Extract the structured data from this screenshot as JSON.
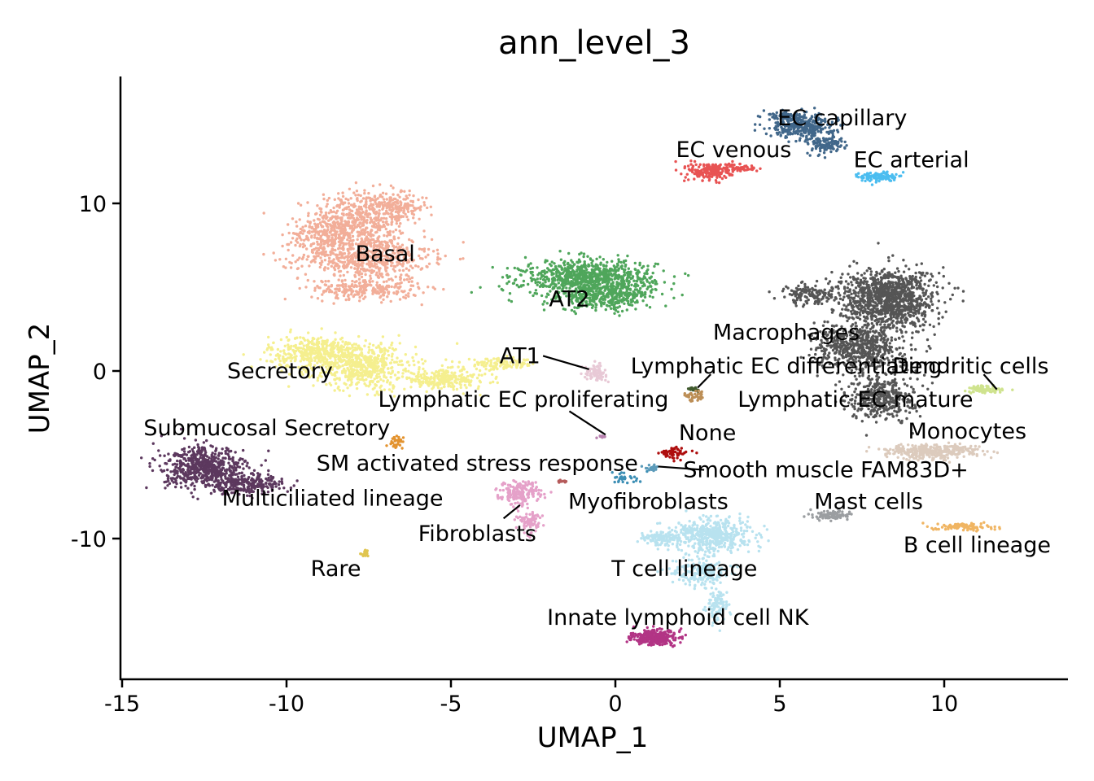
{
  "chart_data": {
    "type": "scatter",
    "title": "ann_level_3",
    "xlabel": "UMAP_1",
    "ylabel": "UMAP_2",
    "xlim": [
      -15.2,
      13.8
    ],
    "ylim": [
      -18.3,
      17.6
    ],
    "xticks": [
      -15,
      -10,
      -5,
      0,
      5,
      10
    ],
    "xtick_labels": [
      "-15",
      "-10",
      "-5",
      "0",
      "5",
      "10"
    ],
    "yticks": [
      -10,
      0,
      10
    ],
    "ytick_labels": [
      "-10",
      "0",
      "10"
    ],
    "grid": false,
    "legend": "none",
    "clusters": [
      {
        "name": "Basal",
        "color": "#F2AE99",
        "label": [
          -7,
          7
        ],
        "blobs": [
          [
            -7.8,
            9.0,
            1.3,
            1.6,
            500
          ],
          [
            -7.6,
            6.8,
            1.8,
            1.2,
            600
          ],
          [
            -8.8,
            8.2,
            0.9,
            1.0,
            200
          ],
          [
            -6.6,
            9.8,
            0.8,
            0.7,
            150
          ],
          [
            -7.6,
            4.9,
            1.5,
            0.6,
            250
          ]
        ]
      },
      {
        "name": "Secretory",
        "color": "#F5EF8F",
        "label": [
          -10.2,
          0
        ],
        "blobs": [
          [
            -9.0,
            1.1,
            1.4,
            0.9,
            450
          ],
          [
            -7.6,
            0.2,
            1.4,
            1.2,
            500
          ],
          [
            -5.2,
            -0.5,
            1.2,
            0.5,
            250
          ],
          [
            -3.5,
            0.4,
            1.0,
            0.3,
            120
          ]
        ]
      },
      {
        "name": "AT2",
        "color": "#4FA65B",
        "label": [
          -1.4,
          4.3
        ],
        "blobs": [
          [
            -0.8,
            5.5,
            1.8,
            1.0,
            900
          ],
          [
            -0.3,
            4.4,
            1.3,
            0.7,
            300
          ]
        ]
      },
      {
        "name": "AT1",
        "color": "#E8C9D6",
        "label": [
          -2.9,
          0.9
        ],
        "leader": [
          [
            -2.2,
            0.9
          ],
          [
            -0.8,
            0.1
          ]
        ],
        "blobs": [
          [
            -0.6,
            -0.1,
            0.3,
            0.4,
            80
          ]
        ]
      },
      {
        "name": "EC capillary",
        "color": "#41678A",
        "label": [
          6.9,
          15.1
        ],
        "blobs": [
          [
            5.7,
            14.6,
            0.9,
            0.6,
            300
          ],
          [
            6.4,
            13.5,
            0.5,
            0.5,
            120
          ],
          [
            5.2,
            15.2,
            0.5,
            0.3,
            80
          ]
        ]
      },
      {
        "name": "EC venous",
        "color": "#E85353",
        "label": [
          3.6,
          13.2
        ],
        "blobs": [
          [
            2.9,
            11.9,
            0.6,
            0.5,
            200
          ],
          [
            3.8,
            12.1,
            0.5,
            0.2,
            60
          ]
        ]
      },
      {
        "name": "EC arterial",
        "color": "#4BBDF0",
        "label": [
          9,
          12.6
        ],
        "blobs": [
          [
            8.0,
            11.6,
            0.5,
            0.25,
            120
          ]
        ]
      },
      {
        "name": "Macrophages",
        "color": "#555555",
        "label": [
          5.2,
          2.3
        ],
        "blobs": [
          [
            8.3,
            4.3,
            1.3,
            1.6,
            1100
          ],
          [
            7.4,
            1.4,
            1.2,
            1.2,
            600
          ],
          [
            8.1,
            -1.5,
            0.9,
            1.3,
            400
          ],
          [
            6.0,
            4.6,
            0.9,
            0.6,
            150
          ]
        ]
      },
      {
        "name": "Lymphatic EC differentiating",
        "color": "#405A2E",
        "label": [
          5.2,
          0.3
        ],
        "leader": [
          [
            2.9,
            -0.2
          ],
          [
            2.5,
            -1.0
          ]
        ],
        "blobs": [
          [
            2.4,
            -1.1,
            0.15,
            0.15,
            20
          ]
        ]
      },
      {
        "name": "Dendritic cells",
        "color": "#CFE38E",
        "label": [
          10.8,
          0.3
        ],
        "leader": [
          [
            11.2,
            -0.2
          ],
          [
            11.6,
            -1.1
          ]
        ],
        "blobs": [
          [
            11.2,
            -1.1,
            0.6,
            0.2,
            80
          ]
        ]
      },
      {
        "name": "Lymphatic EC proliferating",
        "color": "#B983B0",
        "label": [
          -2.8,
          -1.7
        ],
        "leader": [
          [
            -1.4,
            -2.4
          ],
          [
            -0.3,
            -3.8
          ]
        ],
        "blobs": [
          [
            -0.4,
            -3.9,
            0.1,
            0.1,
            10
          ]
        ]
      },
      {
        "name": "Lymphatic EC mature",
        "color": "#BC8E56",
        "label": [
          7.3,
          -1.7
        ],
        "blobs": [
          [
            2.4,
            -1.5,
            0.3,
            0.3,
            40
          ]
        ]
      },
      {
        "name": "Submucosal Secretory",
        "color": "#E3932F",
        "label": [
          -10.6,
          -3.4
        ],
        "blobs": [
          [
            -6.6,
            -4.2,
            0.2,
            0.3,
            30
          ]
        ]
      },
      {
        "name": "None",
        "color": "#AE0E0E",
        "label": [
          2.8,
          -3.7
        ],
        "blobs": [
          [
            1.8,
            -4.9,
            0.4,
            0.3,
            60
          ]
        ]
      },
      {
        "name": "Monocytes",
        "color": "#DCCBBD",
        "label": [
          10.7,
          -3.6
        ],
        "blobs": [
          [
            9.6,
            -4.8,
            1.3,
            0.4,
            350
          ]
        ]
      },
      {
        "name": "SM activated stress response",
        "color": "#3D8FB5",
        "label": [
          -4.2,
          -5.5
        ],
        "blobs": [
          [
            0.2,
            -6.4,
            0.5,
            0.3,
            30
          ]
        ]
      },
      {
        "name": "Smooth muscle FAM83D+",
        "color": "#5C9BBA",
        "label": [
          6.4,
          -5.9
        ],
        "leader": [
          [
            2.7,
            -5.9
          ],
          [
            1.3,
            -5.7
          ]
        ],
        "blobs": [
          [
            1.1,
            -5.8,
            0.2,
            0.15,
            20
          ]
        ]
      },
      {
        "name": "Multiciliated lineage",
        "color": "#5C385E",
        "label": [
          -8.6,
          -7.6
        ],
        "blobs": [
          [
            -12.5,
            -5.8,
            1.1,
            1.1,
            600
          ],
          [
            -11.2,
            -6.7,
            1.0,
            0.6,
            250
          ]
        ]
      },
      {
        "name": "Fibroblasts",
        "color": "#E5A1C9",
        "label": [
          -4.2,
          -9.7
        ],
        "leader": [
          [
            -3.4,
            -8.8
          ],
          [
            -2.9,
            -8.0
          ]
        ],
        "blobs": [
          [
            -2.9,
            -7.3,
            0.6,
            0.6,
            200
          ],
          [
            -2.6,
            -8.9,
            0.3,
            0.6,
            80
          ]
        ]
      },
      {
        "name": "Myofibroblasts",
        "color": "#B55B5B",
        "label": [
          1,
          -7.8
        ],
        "blobs": [
          [
            -1.6,
            -6.6,
            0.15,
            0.1,
            15
          ]
        ]
      },
      {
        "name": "Mast cells",
        "color": "#9B9EA1",
        "label": [
          7.7,
          -7.8
        ],
        "blobs": [
          [
            6.6,
            -8.6,
            0.5,
            0.25,
            100
          ]
        ]
      },
      {
        "name": "B cell lineage",
        "color": "#F0B563",
        "label": [
          11,
          -10.4
        ],
        "blobs": [
          [
            10.6,
            -9.3,
            0.8,
            0.2,
            100
          ]
        ]
      },
      {
        "name": "Rare",
        "color": "#E0C54F",
        "label": [
          -8.5,
          -11.8
        ],
        "blobs": [
          [
            -7.6,
            -10.9,
            0.15,
            0.2,
            20
          ]
        ]
      },
      {
        "name": "T cell lineage",
        "color": "#B8E2EF",
        "label": [
          2.1,
          -11.8
        ],
        "blobs": [
          [
            3.0,
            -9.8,
            1.0,
            0.9,
            500
          ],
          [
            2.6,
            -12.0,
            0.8,
            0.8,
            200
          ],
          [
            1.4,
            -10.0,
            0.6,
            0.4,
            120
          ],
          [
            3.1,
            -14.0,
            0.3,
            0.8,
            100
          ]
        ]
      },
      {
        "name": "Innate lymphoid cell NK",
        "color": "#B23485",
        "label": [
          1.9,
          -14.7
        ],
        "blobs": [
          [
            1.2,
            -15.9,
            0.6,
            0.4,
            300
          ]
        ]
      }
    ]
  }
}
